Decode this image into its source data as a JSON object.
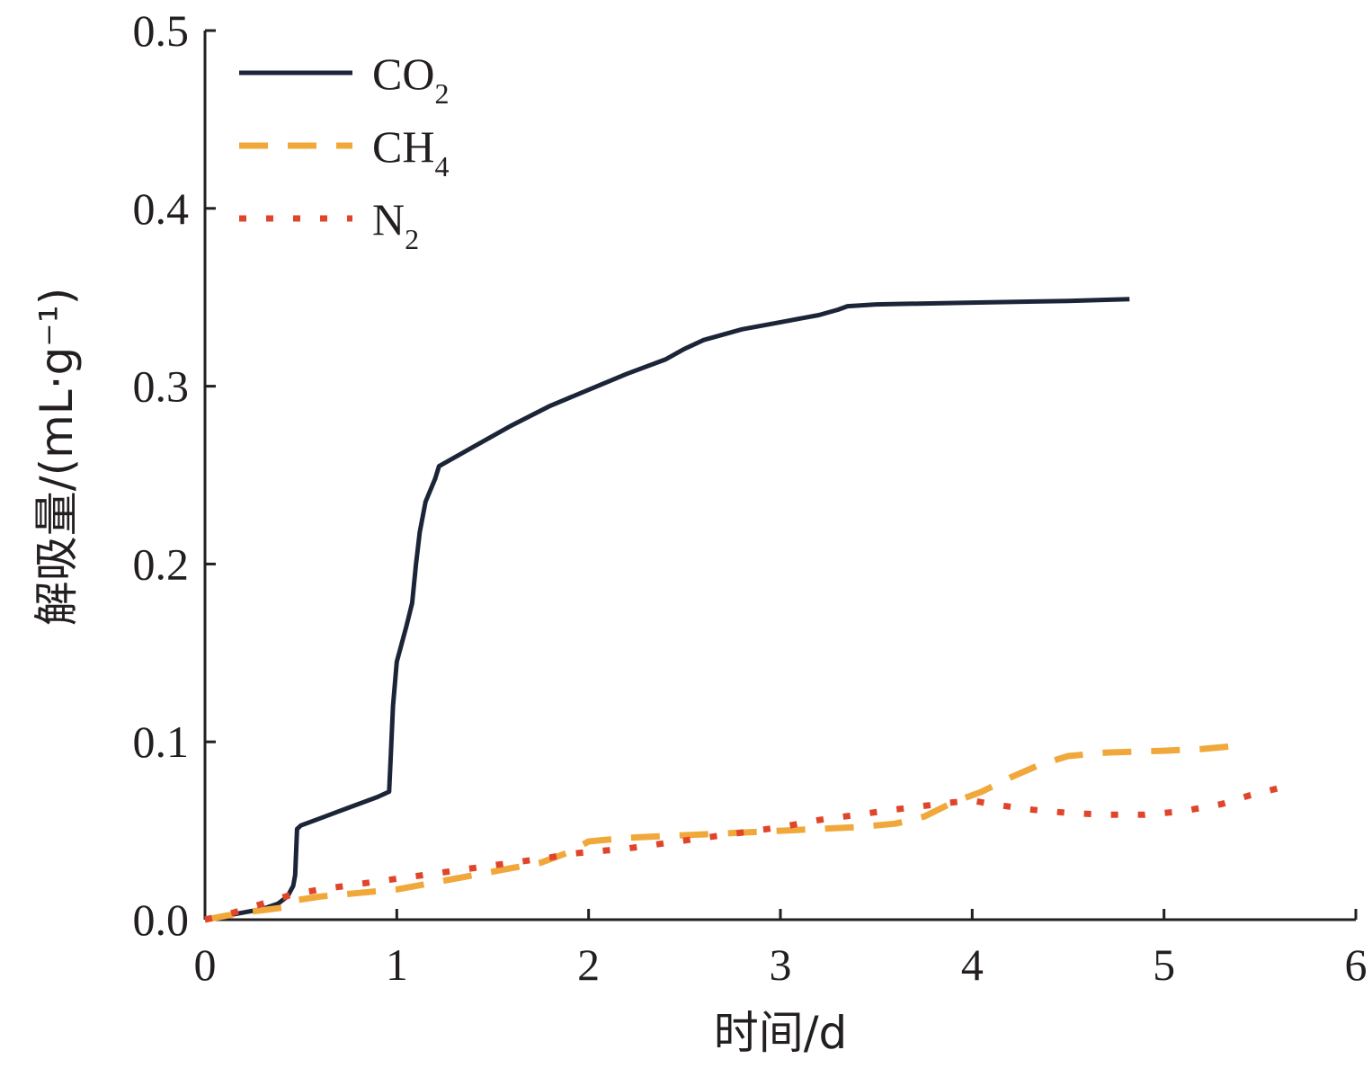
{
  "chart_data": {
    "type": "line",
    "xlabel": "时间/d",
    "ylabel": "解吸量/(mL·g⁻¹)",
    "xlim": [
      0,
      6
    ],
    "ylim": [
      0,
      0.5
    ],
    "x_ticks": [
      "0",
      "1",
      "2",
      "3",
      "4",
      "5",
      "6"
    ],
    "y_ticks": [
      "0.0",
      "0.1",
      "0.2",
      "0.3",
      "0.4",
      "0.5"
    ],
    "grid": false,
    "legend_position": "top-left",
    "series": [
      {
        "name": "CO2",
        "legend_label": {
          "base": "CO",
          "sub": "2"
        },
        "color": "#1c2538",
        "style": "solid",
        "x": [
          0,
          0.1,
          0.2,
          0.3,
          0.38,
          0.43,
          0.46,
          0.47,
          0.48,
          0.5,
          0.6,
          0.7,
          0.8,
          0.9,
          0.96,
          0.97,
          0.98,
          1.0,
          1.05,
          1.08,
          1.1,
          1.12,
          1.15,
          1.2,
          1.22,
          1.4,
          1.6,
          1.8,
          2.0,
          2.2,
          2.4,
          2.5,
          2.6,
          2.8,
          3.0,
          3.2,
          3.3,
          3.35,
          3.5,
          4.0,
          4.5,
          4.82
        ],
        "y": [
          0,
          0.002,
          0.004,
          0.006,
          0.009,
          0.013,
          0.019,
          0.025,
          0.051,
          0.053,
          0.057,
          0.061,
          0.065,
          0.069,
          0.072,
          0.095,
          0.12,
          0.145,
          0.165,
          0.178,
          0.2,
          0.218,
          0.235,
          0.248,
          0.255,
          0.266,
          0.278,
          0.289,
          0.298,
          0.307,
          0.315,
          0.321,
          0.326,
          0.332,
          0.336,
          0.34,
          0.343,
          0.345,
          0.346,
          0.347,
          0.348,
          0.349
        ]
      },
      {
        "name": "CH4",
        "legend_label": {
          "base": "CH",
          "sub": "4"
        },
        "color": "#f1a83b",
        "style": "dashed",
        "x": [
          0,
          0.1,
          0.2,
          0.35,
          0.42,
          0.48,
          0.6,
          0.8,
          1.0,
          1.2,
          1.4,
          1.6,
          1.75,
          1.9,
          2.0,
          2.2,
          2.4,
          2.6,
          2.8,
          3.0,
          3.2,
          3.4,
          3.6,
          3.75,
          3.9,
          4.05,
          4.2,
          4.35,
          4.5,
          4.7,
          5.0,
          5.2,
          5.4
        ],
        "y": [
          0,
          0.002,
          0.004,
          0.006,
          0.007,
          0.011,
          0.013,
          0.015,
          0.017,
          0.021,
          0.025,
          0.029,
          0.032,
          0.038,
          0.044,
          0.046,
          0.047,
          0.048,
          0.049,
          0.05,
          0.051,
          0.052,
          0.054,
          0.058,
          0.066,
          0.072,
          0.08,
          0.087,
          0.092,
          0.094,
          0.095,
          0.096,
          0.098
        ]
      },
      {
        "name": "N2",
        "legend_label": {
          "base": "N",
          "sub": "2"
        },
        "color": "#e0452b",
        "style": "dotted",
        "x": [
          0,
          0.15,
          0.3,
          0.45,
          0.6,
          0.8,
          1.0,
          1.2,
          1.4,
          1.6,
          1.8,
          1.9,
          2.0,
          2.2,
          2.4,
          2.6,
          2.8,
          3.0,
          3.2,
          3.4,
          3.6,
          3.75,
          3.9,
          4.0,
          4.1,
          4.3,
          4.5,
          4.7,
          4.9,
          5.1,
          5.3,
          5.45,
          5.6,
          5.67
        ],
        "y": [
          0,
          0.004,
          0.009,
          0.014,
          0.017,
          0.02,
          0.023,
          0.026,
          0.029,
          0.032,
          0.035,
          0.037,
          0.038,
          0.04,
          0.043,
          0.046,
          0.049,
          0.052,
          0.056,
          0.059,
          0.062,
          0.064,
          0.066,
          0.067,
          0.065,
          0.062,
          0.06,
          0.059,
          0.059,
          0.061,
          0.065,
          0.07,
          0.074,
          0.077
        ]
      }
    ]
  }
}
